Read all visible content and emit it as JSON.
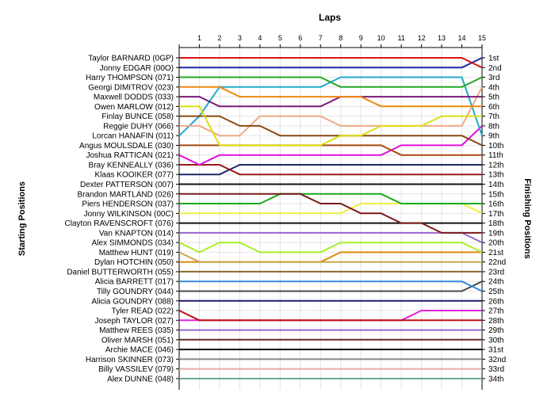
{
  "chart_data": {
    "type": "line",
    "title": "Laps",
    "ylabel_left": "Starting Positions",
    "ylabel_right": "Finishing Positions",
    "x": [
      0,
      1,
      2,
      3,
      4,
      5,
      6,
      7,
      8,
      9,
      10,
      11,
      12,
      13,
      14,
      15
    ],
    "x_tick_labels": [
      "1",
      "2",
      "3",
      "4",
      "5",
      "6",
      "7",
      "8",
      "9",
      "10",
      "11",
      "12",
      "13",
      "14",
      "15"
    ],
    "position_labels": [
      "1st",
      "2nd",
      "3rd",
      "4th",
      "5th",
      "6th",
      "7th",
      "8th",
      "9th",
      "10th",
      "11th",
      "12th",
      "13th",
      "14th",
      "15th",
      "16th",
      "17th",
      "18th",
      "19th",
      "20th",
      "21st",
      "22nd",
      "23rd",
      "24th",
      "25th",
      "26th",
      "27th",
      "28th",
      "29th",
      "30th",
      "31st",
      "32nd",
      "33rd",
      "34th"
    ],
    "grid": true,
    "series": [
      {
        "name": "Taylor BARNARD (0GP)",
        "color": "#dd1111",
        "values": [
          1,
          1,
          1,
          1,
          1,
          1,
          1,
          1,
          1,
          1,
          1,
          1,
          1,
          1,
          1,
          2
        ]
      },
      {
        "name": "Jonny EDGAR (00O)",
        "color": "#1a2aa8",
        "values": [
          2,
          2,
          2,
          2,
          2,
          2,
          2,
          2,
          2,
          2,
          2,
          2,
          2,
          2,
          2,
          1
        ]
      },
      {
        "name": "Harry THOMPSON (071)",
        "color": "#22aa22",
        "values": [
          3,
          3,
          3,
          3,
          3,
          3,
          3,
          3,
          4,
          4,
          4,
          4,
          4,
          4,
          4,
          3
        ]
      },
      {
        "name": "Georgi DIMITROV (023)",
        "color": "#ee8811",
        "values": [
          4,
          4,
          4,
          5,
          5,
          5,
          5,
          5,
          5,
          5,
          6,
          6,
          6,
          6,
          6,
          6
        ]
      },
      {
        "name": "Maxwell DODDS (033)",
        "color": "#7a1a7a",
        "values": [
          5,
          5,
          6,
          6,
          6,
          6,
          6,
          6,
          5,
          5,
          5,
          5,
          5,
          5,
          5,
          5
        ]
      },
      {
        "name": "Owen MARLOW (012)",
        "color": "#dddd11",
        "values": [
          6,
          6,
          10,
          10,
          10,
          10,
          10,
          10,
          9,
          9,
          8,
          8,
          8,
          7,
          7,
          7
        ]
      },
      {
        "name": "Finlay BUNCE (058)",
        "color": "#8a4a12",
        "values": [
          7,
          7,
          7,
          8,
          8,
          9,
          9,
          9,
          9,
          9,
          9,
          9,
          9,
          9,
          9,
          10
        ]
      },
      {
        "name": "Reggie DUHY (066)",
        "color": "#eeaa88",
        "values": [
          8,
          8,
          9,
          9,
          7,
          7,
          7,
          7,
          8,
          8,
          8,
          8,
          8,
          8,
          8,
          4
        ]
      },
      {
        "name": "Lorcan HANAFIN (011)",
        "color": "#22aacc",
        "values": [
          9,
          7,
          4,
          4,
          4,
          4,
          4,
          4,
          3,
          3,
          3,
          3,
          3,
          3,
          3,
          9
        ]
      },
      {
        "name": "Angus MOULSDALE (030)",
        "color": "#a84a12",
        "values": [
          10,
          10,
          10,
          10,
          10,
          10,
          10,
          10,
          10,
          10,
          10,
          11,
          11,
          11,
          11,
          11
        ]
      },
      {
        "name": "Joshua RATTICAN (021)",
        "color": "#dd11dd",
        "values": [
          11,
          12,
          11,
          11,
          11,
          11,
          11,
          11,
          11,
          11,
          11,
          10,
          10,
          10,
          10,
          8
        ]
      },
      {
        "name": "Bray KENNEALLY (036)",
        "color": "#9a1a1a",
        "values": [
          12,
          12,
          12,
          13,
          13,
          13,
          13,
          13,
          13,
          13,
          13,
          13,
          13,
          13,
          13,
          13
        ]
      },
      {
        "name": "Klaas KOOIKER (077)",
        "color": "#1a2a6a",
        "values": [
          13,
          13,
          13,
          12,
          12,
          12,
          12,
          12,
          12,
          12,
          12,
          12,
          12,
          12,
          12,
          12
        ]
      },
      {
        "name": "Dexter PATTERSON (007)",
        "color": "#111111",
        "values": [
          14,
          14,
          14,
          14,
          14,
          14,
          14,
          14,
          14,
          14,
          14,
          14,
          14,
          14,
          14,
          14
        ]
      },
      {
        "name": "Brandon MARTLAND (026)",
        "color": "#7a1a1a",
        "values": [
          15,
          15,
          15,
          15,
          15,
          15,
          15,
          16,
          16,
          17,
          17,
          18,
          18,
          19,
          19,
          19
        ]
      },
      {
        "name": "Piers HENDERSON (037)",
        "color": "#1aaa1a",
        "values": [
          16,
          16,
          16,
          16,
          16,
          15,
          15,
          15,
          15,
          15,
          15,
          16,
          16,
          16,
          16,
          16
        ]
      },
      {
        "name": "Jonny WILKINSON (00C)",
        "color": "#eeee44",
        "values": [
          17,
          17,
          17,
          17,
          17,
          17,
          17,
          17,
          17,
          16,
          16,
          16,
          16,
          16,
          16,
          17
        ]
      },
      {
        "name": "Clayton RAVENSCROFT (076)",
        "color": "#111111",
        "values": [
          18,
          18,
          18,
          18,
          18,
          18,
          18,
          18,
          18,
          18,
          18,
          18,
          18,
          18,
          18,
          18
        ]
      },
      {
        "name": "Van KNAPTON (014)",
        "color": "#9966cc",
        "values": [
          19,
          19,
          19,
          19,
          19,
          19,
          19,
          19,
          19,
          19,
          19,
          19,
          19,
          19,
          19,
          20
        ]
      },
      {
        "name": "Alex SIMMONDS (034)",
        "color": "#aaee22",
        "values": [
          20,
          21,
          20,
          20,
          21,
          21,
          21,
          21,
          20,
          20,
          20,
          20,
          20,
          20,
          20,
          21
        ]
      },
      {
        "name": "Matthew HUNT (019)",
        "color": "#c8a84a",
        "values": [
          21,
          22,
          22,
          22,
          22,
          22,
          22,
          22,
          22,
          22,
          22,
          22,
          22,
          22,
          22,
          22
        ]
      },
      {
        "name": "Dylan HOTCHIN (050)",
        "color": "#dd8811",
        "values": [
          22,
          22,
          22,
          22,
          22,
          22,
          22,
          22,
          21,
          21,
          21,
          21,
          21,
          21,
          21,
          21
        ]
      },
      {
        "name": "Daniel BUTTERWORTH (055)",
        "color": "#8a6a2a",
        "values": [
          23,
          23,
          23,
          23,
          23,
          23,
          23,
          23,
          23,
          23,
          23,
          23,
          23,
          23,
          23,
          23
        ]
      },
      {
        "name": "Alicia BARRETT (017)",
        "color": "#3388dd",
        "values": [
          24,
          24,
          24,
          24,
          24,
          24,
          24,
          24,
          24,
          24,
          24,
          24,
          24,
          24,
          24,
          25
        ]
      },
      {
        "name": "Tilly GOUNDRY (044)",
        "color": "#4a4a4a",
        "values": [
          25,
          25,
          25,
          25,
          25,
          25,
          25,
          25,
          25,
          25,
          25,
          25,
          25,
          25,
          25,
          24
        ]
      },
      {
        "name": "Alicia GOUNDRY (088)",
        "color": "#1a1a6a",
        "values": [
          26,
          26,
          26,
          26,
          26,
          26,
          26,
          26,
          26,
          26,
          26,
          26,
          26,
          26,
          26,
          26
        ]
      },
      {
        "name": "Tyler READ (022)",
        "color": "#bb1111",
        "values": [
          27,
          28,
          28,
          28,
          28,
          28,
          28,
          28,
          28,
          28,
          28,
          28,
          28,
          28,
          28,
          28
        ]
      },
      {
        "name": "Joseph TAYLOR (027)",
        "color": "#dd22dd",
        "values": [
          28,
          28,
          28,
          28,
          28,
          28,
          28,
          28,
          28,
          28,
          28,
          28,
          27,
          27,
          27,
          27
        ]
      },
      {
        "name": "Matthew REES (035)",
        "color": "#9966cc",
        "values": [
          29,
          29,
          29,
          29,
          29,
          29,
          29,
          29,
          29,
          29,
          29,
          29,
          29,
          29,
          29,
          29
        ]
      },
      {
        "name": "Oliver MARSH (051)",
        "color": "#6a2a2a",
        "values": [
          30,
          30,
          30,
          30,
          30,
          30,
          30,
          30,
          30,
          30,
          30,
          30,
          30,
          30,
          30,
          30
        ]
      },
      {
        "name": "Archie MACE (046)",
        "color": "#111111",
        "values": [
          31,
          31,
          31,
          31,
          31,
          31,
          31,
          31,
          31,
          31,
          31,
          31,
          31,
          31,
          31,
          31
        ]
      },
      {
        "name": "Harrison SKINNER (073)",
        "color": "#888888",
        "values": [
          32,
          32,
          32,
          32,
          32,
          32,
          32,
          32,
          32,
          32,
          32,
          32,
          32,
          32,
          32,
          32
        ]
      },
      {
        "name": "Billy VASSILEV (079)",
        "color": "#e8a8a8",
        "values": [
          33,
          33,
          33,
          33,
          33,
          33,
          33,
          33,
          33,
          33,
          33,
          33,
          33,
          33,
          33,
          33
        ]
      },
      {
        "name": "Alex DUNNE (048)",
        "color": "#66aa99",
        "values": [
          34,
          34,
          34,
          34,
          34,
          34,
          34,
          34,
          34,
          34,
          34,
          34,
          34,
          34,
          34,
          34
        ]
      }
    ]
  }
}
